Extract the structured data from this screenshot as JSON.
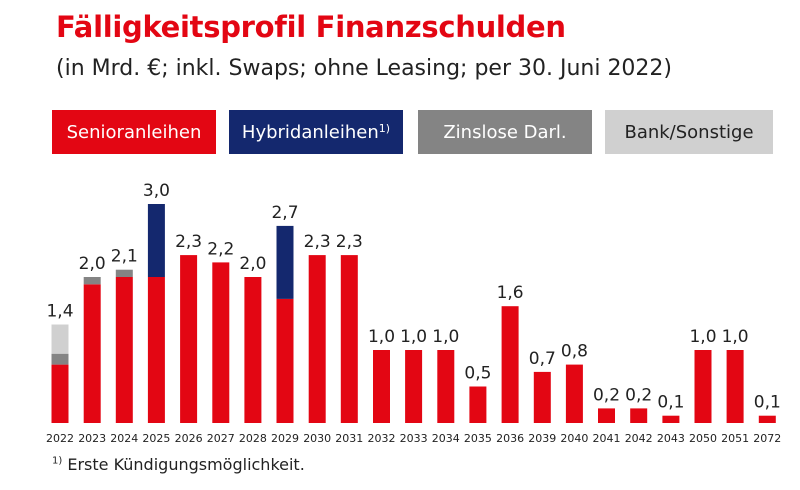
{
  "title": "Fälligkeitsprofil Finanzschulden",
  "subtitle": "(in Mrd. €; inkl. Swaps; ohne Leasing; per 30. Juni 2022)",
  "footnote": {
    "marker": "1)",
    "text": " Erste Kündigungsmöglichkeit."
  },
  "legend": [
    {
      "label": "Senioranleihen",
      "sup": "",
      "bg": "#e30613",
      "fg": "#ffffff"
    },
    {
      "label": "Hybridanleihen",
      "sup": "1)",
      "bg": "#14286e",
      "fg": "#ffffff"
    },
    {
      "label": "Zinslose Darl.",
      "sup": "",
      "bg": "#848484",
      "fg": "#ffffff"
    },
    {
      "label": "Bank/Sonstige",
      "sup": "",
      "bg": "#d0d0d0",
      "fg": "#222222"
    }
  ],
  "chart_data": {
    "type": "bar",
    "stacked": true,
    "categories": [
      "2022",
      "2023",
      "2024",
      "2025",
      "2026",
      "2027",
      "2028",
      "2029",
      "2030",
      "2031",
      "2032",
      "2033",
      "2034",
      "2035",
      "2036",
      "2039",
      "2040",
      "2041",
      "2042",
      "2043",
      "2050",
      "2051",
      "2072"
    ],
    "totals": [
      "1,4",
      "2,0",
      "2,1",
      "3,0",
      "2,3",
      "2,2",
      "2,0",
      "2,7",
      "2,3",
      "2,3",
      "1,0",
      "1,0",
      "1,0",
      "0,5",
      "1,6",
      "0,7",
      "0,8",
      "0,2",
      "0,2",
      "0,1",
      "1,0",
      "1,0",
      "0,1"
    ],
    "series": [
      {
        "name": "Senioranleihen",
        "color": "#e30613",
        "values": [
          0.8,
          1.9,
          2.0,
          2.0,
          2.3,
          2.2,
          2.0,
          1.7,
          2.3,
          2.3,
          1.0,
          1.0,
          1.0,
          0.5,
          1.6,
          0.7,
          0.8,
          0.2,
          0.2,
          0.1,
          1.0,
          1.0,
          0.1
        ]
      },
      {
        "name": "Hybridanleihen",
        "color": "#14286e",
        "values": [
          0,
          0,
          0,
          1.0,
          0,
          0,
          0,
          1.0,
          0,
          0,
          0,
          0,
          0,
          0,
          0,
          0,
          0,
          0,
          0,
          0,
          0,
          0,
          0
        ]
      },
      {
        "name": "Zinslose Darl.",
        "color": "#848484",
        "values": [
          0.15,
          0.1,
          0.1,
          0,
          0,
          0,
          0,
          0,
          0,
          0,
          0,
          0,
          0,
          0,
          0,
          0,
          0,
          0,
          0,
          0,
          0,
          0,
          0
        ]
      },
      {
        "name": "Bank/Sonstige",
        "color": "#d0d0d0",
        "values": [
          0.4,
          0,
          0,
          0,
          0,
          0,
          0,
          0,
          0,
          0,
          0,
          0,
          0,
          0,
          0,
          0,
          0,
          0,
          0,
          0,
          0,
          0,
          0
        ]
      }
    ]
  }
}
